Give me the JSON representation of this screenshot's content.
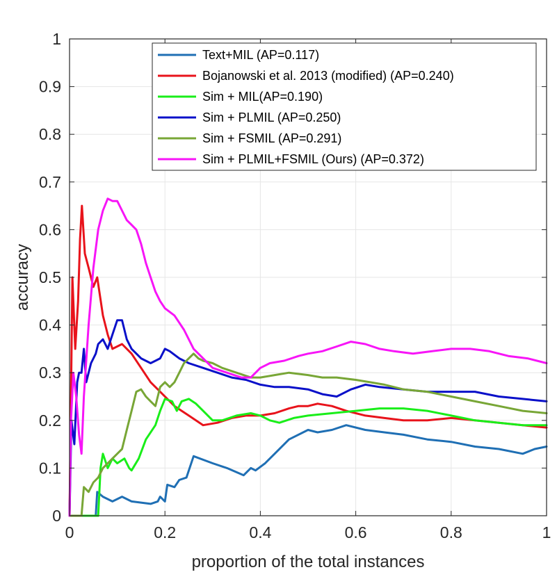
{
  "chart_data": {
    "type": "line",
    "title": "",
    "xlabel": "proportion of the total instances",
    "ylabel": "accuracy",
    "xlim": [
      0,
      1
    ],
    "ylim": [
      0,
      1
    ],
    "grid": true,
    "legend_position": "top-right",
    "x_ticks": [
      "0",
      "0.2",
      "0.4",
      "0.6",
      "0.8",
      "1"
    ],
    "y_ticks": [
      "0",
      "0.1",
      "0.2",
      "0.3",
      "0.4",
      "0.5",
      "0.6",
      "0.7",
      "0.8",
      "0.9",
      "1"
    ],
    "series": [
      {
        "name": "Text+MIL (AP=0.117)",
        "color": "#1f6fb4",
        "points": [
          [
            0,
            0
          ],
          [
            0.055,
            0
          ],
          [
            0.058,
            0.05
          ],
          [
            0.07,
            0.04
          ],
          [
            0.09,
            0.03
          ],
          [
            0.11,
            0.04
          ],
          [
            0.13,
            0.03
          ],
          [
            0.17,
            0.025
          ],
          [
            0.185,
            0.03
          ],
          [
            0.19,
            0.04
          ],
          [
            0.2,
            0.03
          ],
          [
            0.205,
            0.065
          ],
          [
            0.22,
            0.06
          ],
          [
            0.23,
            0.075
          ],
          [
            0.245,
            0.08
          ],
          [
            0.26,
            0.125
          ],
          [
            0.3,
            0.11
          ],
          [
            0.33,
            0.1
          ],
          [
            0.365,
            0.085
          ],
          [
            0.38,
            0.1
          ],
          [
            0.39,
            0.095
          ],
          [
            0.41,
            0.11
          ],
          [
            0.43,
            0.13
          ],
          [
            0.46,
            0.16
          ],
          [
            0.5,
            0.18
          ],
          [
            0.52,
            0.175
          ],
          [
            0.55,
            0.18
          ],
          [
            0.58,
            0.19
          ],
          [
            0.62,
            0.18
          ],
          [
            0.66,
            0.175
          ],
          [
            0.7,
            0.17
          ],
          [
            0.75,
            0.16
          ],
          [
            0.8,
            0.155
          ],
          [
            0.85,
            0.145
          ],
          [
            0.9,
            0.14
          ],
          [
            0.95,
            0.13
          ],
          [
            0.975,
            0.14
          ],
          [
            1.0,
            0.145
          ]
        ]
      },
      {
        "name": "Bojanowski et al. 2013 (modified) (AP=0.240)",
        "color": "#e8131b",
        "points": [
          [
            0,
            0
          ],
          [
            0.003,
            0.25
          ],
          [
            0.006,
            0.5
          ],
          [
            0.012,
            0.35
          ],
          [
            0.018,
            0.45
          ],
          [
            0.022,
            0.58
          ],
          [
            0.026,
            0.65
          ],
          [
            0.032,
            0.55
          ],
          [
            0.04,
            0.52
          ],
          [
            0.05,
            0.48
          ],
          [
            0.058,
            0.5
          ],
          [
            0.07,
            0.42
          ],
          [
            0.08,
            0.38
          ],
          [
            0.09,
            0.35
          ],
          [
            0.11,
            0.36
          ],
          [
            0.13,
            0.34
          ],
          [
            0.15,
            0.31
          ],
          [
            0.17,
            0.28
          ],
          [
            0.19,
            0.26
          ],
          [
            0.22,
            0.23
          ],
          [
            0.25,
            0.21
          ],
          [
            0.28,
            0.19
          ],
          [
            0.31,
            0.195
          ],
          [
            0.34,
            0.205
          ],
          [
            0.37,
            0.21
          ],
          [
            0.4,
            0.21
          ],
          [
            0.43,
            0.215
          ],
          [
            0.46,
            0.225
          ],
          [
            0.48,
            0.23
          ],
          [
            0.5,
            0.23
          ],
          [
            0.52,
            0.235
          ],
          [
            0.55,
            0.23
          ],
          [
            0.58,
            0.22
          ],
          [
            0.62,
            0.21
          ],
          [
            0.66,
            0.205
          ],
          [
            0.7,
            0.2
          ],
          [
            0.75,
            0.2
          ],
          [
            0.8,
            0.205
          ],
          [
            0.85,
            0.2
          ],
          [
            0.9,
            0.195
          ],
          [
            0.95,
            0.19
          ],
          [
            1.0,
            0.185
          ]
        ]
      },
      {
        "name": "Sim + MIL(AP=0.190)",
        "color": "#19ee19",
        "points": [
          [
            0,
            0
          ],
          [
            0.06,
            0
          ],
          [
            0.065,
            0.1
          ],
          [
            0.07,
            0.13
          ],
          [
            0.08,
            0.1
          ],
          [
            0.09,
            0.12
          ],
          [
            0.1,
            0.11
          ],
          [
            0.115,
            0.12
          ],
          [
            0.125,
            0.1
          ],
          [
            0.13,
            0.095
          ],
          [
            0.145,
            0.12
          ],
          [
            0.16,
            0.16
          ],
          [
            0.18,
            0.19
          ],
          [
            0.19,
            0.22
          ],
          [
            0.2,
            0.245
          ],
          [
            0.215,
            0.24
          ],
          [
            0.225,
            0.22
          ],
          [
            0.235,
            0.24
          ],
          [
            0.25,
            0.245
          ],
          [
            0.265,
            0.235
          ],
          [
            0.28,
            0.22
          ],
          [
            0.3,
            0.2
          ],
          [
            0.32,
            0.2
          ],
          [
            0.35,
            0.21
          ],
          [
            0.38,
            0.215
          ],
          [
            0.4,
            0.21
          ],
          [
            0.42,
            0.2
          ],
          [
            0.44,
            0.195
          ],
          [
            0.47,
            0.205
          ],
          [
            0.5,
            0.21
          ],
          [
            0.55,
            0.215
          ],
          [
            0.6,
            0.22
          ],
          [
            0.65,
            0.225
          ],
          [
            0.7,
            0.225
          ],
          [
            0.75,
            0.22
          ],
          [
            0.8,
            0.21
          ],
          [
            0.85,
            0.2
          ],
          [
            0.9,
            0.195
          ],
          [
            0.95,
            0.19
          ],
          [
            1.0,
            0.19
          ]
        ]
      },
      {
        "name": "Sim + PLMIL (AP=0.250)",
        "color": "#0a10c9",
        "points": [
          [
            0,
            0
          ],
          [
            0.004,
            0.2
          ],
          [
            0.01,
            0.15
          ],
          [
            0.016,
            0.28
          ],
          [
            0.02,
            0.3
          ],
          [
            0.025,
            0.3
          ],
          [
            0.03,
            0.35
          ],
          [
            0.035,
            0.28
          ],
          [
            0.045,
            0.32
          ],
          [
            0.055,
            0.34
          ],
          [
            0.06,
            0.36
          ],
          [
            0.07,
            0.37
          ],
          [
            0.08,
            0.35
          ],
          [
            0.09,
            0.38
          ],
          [
            0.1,
            0.41
          ],
          [
            0.11,
            0.41
          ],
          [
            0.12,
            0.37
          ],
          [
            0.13,
            0.35
          ],
          [
            0.15,
            0.33
          ],
          [
            0.17,
            0.32
          ],
          [
            0.19,
            0.33
          ],
          [
            0.2,
            0.35
          ],
          [
            0.21,
            0.345
          ],
          [
            0.23,
            0.33
          ],
          [
            0.25,
            0.32
          ],
          [
            0.28,
            0.31
          ],
          [
            0.31,
            0.3
          ],
          [
            0.34,
            0.29
          ],
          [
            0.37,
            0.285
          ],
          [
            0.4,
            0.275
          ],
          [
            0.43,
            0.27
          ],
          [
            0.46,
            0.27
          ],
          [
            0.5,
            0.265
          ],
          [
            0.53,
            0.255
          ],
          [
            0.56,
            0.25
          ],
          [
            0.59,
            0.265
          ],
          [
            0.62,
            0.275
          ],
          [
            0.65,
            0.27
          ],
          [
            0.7,
            0.265
          ],
          [
            0.75,
            0.26
          ],
          [
            0.8,
            0.26
          ],
          [
            0.85,
            0.26
          ],
          [
            0.9,
            0.25
          ],
          [
            0.95,
            0.245
          ],
          [
            1.0,
            0.24
          ]
        ]
      },
      {
        "name": "Sim + FSMIL (AP=0.291)",
        "color": "#78a636",
        "points": [
          [
            0,
            0
          ],
          [
            0.025,
            0
          ],
          [
            0.03,
            0.06
          ],
          [
            0.04,
            0.05
          ],
          [
            0.05,
            0.07
          ],
          [
            0.06,
            0.08
          ],
          [
            0.07,
            0.1
          ],
          [
            0.08,
            0.11
          ],
          [
            0.09,
            0.12
          ],
          [
            0.1,
            0.13
          ],
          [
            0.11,
            0.14
          ],
          [
            0.12,
            0.18
          ],
          [
            0.13,
            0.22
          ],
          [
            0.14,
            0.26
          ],
          [
            0.15,
            0.265
          ],
          [
            0.16,
            0.25
          ],
          [
            0.17,
            0.24
          ],
          [
            0.18,
            0.23
          ],
          [
            0.19,
            0.27
          ],
          [
            0.2,
            0.28
          ],
          [
            0.21,
            0.27
          ],
          [
            0.22,
            0.28
          ],
          [
            0.23,
            0.3
          ],
          [
            0.24,
            0.32
          ],
          [
            0.25,
            0.33
          ],
          [
            0.26,
            0.34
          ],
          [
            0.27,
            0.33
          ],
          [
            0.28,
            0.325
          ],
          [
            0.3,
            0.32
          ],
          [
            0.32,
            0.31
          ],
          [
            0.35,
            0.3
          ],
          [
            0.38,
            0.29
          ],
          [
            0.4,
            0.29
          ],
          [
            0.43,
            0.295
          ],
          [
            0.46,
            0.3
          ],
          [
            0.5,
            0.295
          ],
          [
            0.53,
            0.29
          ],
          [
            0.56,
            0.29
          ],
          [
            0.6,
            0.285
          ],
          [
            0.63,
            0.28
          ],
          [
            0.66,
            0.275
          ],
          [
            0.7,
            0.265
          ],
          [
            0.75,
            0.26
          ],
          [
            0.8,
            0.25
          ],
          [
            0.85,
            0.24
          ],
          [
            0.9,
            0.23
          ],
          [
            0.95,
            0.22
          ],
          [
            1.0,
            0.215
          ]
        ]
      },
      {
        "name": "Sim + PLMIL+FSMIL (Ours) (AP=0.372)",
        "color": "#f715f7",
        "points": [
          [
            0,
            0
          ],
          [
            0.003,
            0.2
          ],
          [
            0.008,
            0.3
          ],
          [
            0.014,
            0.25
          ],
          [
            0.02,
            0.17
          ],
          [
            0.025,
            0.13
          ],
          [
            0.03,
            0.25
          ],
          [
            0.04,
            0.4
          ],
          [
            0.05,
            0.52
          ],
          [
            0.06,
            0.6
          ],
          [
            0.07,
            0.64
          ],
          [
            0.08,
            0.665
          ],
          [
            0.09,
            0.66
          ],
          [
            0.1,
            0.66
          ],
          [
            0.11,
            0.64
          ],
          [
            0.12,
            0.62
          ],
          [
            0.13,
            0.61
          ],
          [
            0.14,
            0.6
          ],
          [
            0.15,
            0.57
          ],
          [
            0.16,
            0.53
          ],
          [
            0.17,
            0.5
          ],
          [
            0.18,
            0.47
          ],
          [
            0.19,
            0.45
          ],
          [
            0.2,
            0.435
          ],
          [
            0.22,
            0.42
          ],
          [
            0.24,
            0.39
          ],
          [
            0.26,
            0.35
          ],
          [
            0.28,
            0.33
          ],
          [
            0.3,
            0.31
          ],
          [
            0.33,
            0.3
          ],
          [
            0.36,
            0.29
          ],
          [
            0.38,
            0.29
          ],
          [
            0.4,
            0.31
          ],
          [
            0.42,
            0.32
          ],
          [
            0.45,
            0.325
          ],
          [
            0.48,
            0.335
          ],
          [
            0.5,
            0.34
          ],
          [
            0.53,
            0.345
          ],
          [
            0.56,
            0.355
          ],
          [
            0.59,
            0.365
          ],
          [
            0.62,
            0.36
          ],
          [
            0.65,
            0.35
          ],
          [
            0.68,
            0.345
          ],
          [
            0.72,
            0.34
          ],
          [
            0.76,
            0.345
          ],
          [
            0.8,
            0.35
          ],
          [
            0.84,
            0.35
          ],
          [
            0.88,
            0.345
          ],
          [
            0.92,
            0.335
          ],
          [
            0.96,
            0.33
          ],
          [
            1.0,
            0.32
          ]
        ]
      }
    ]
  }
}
